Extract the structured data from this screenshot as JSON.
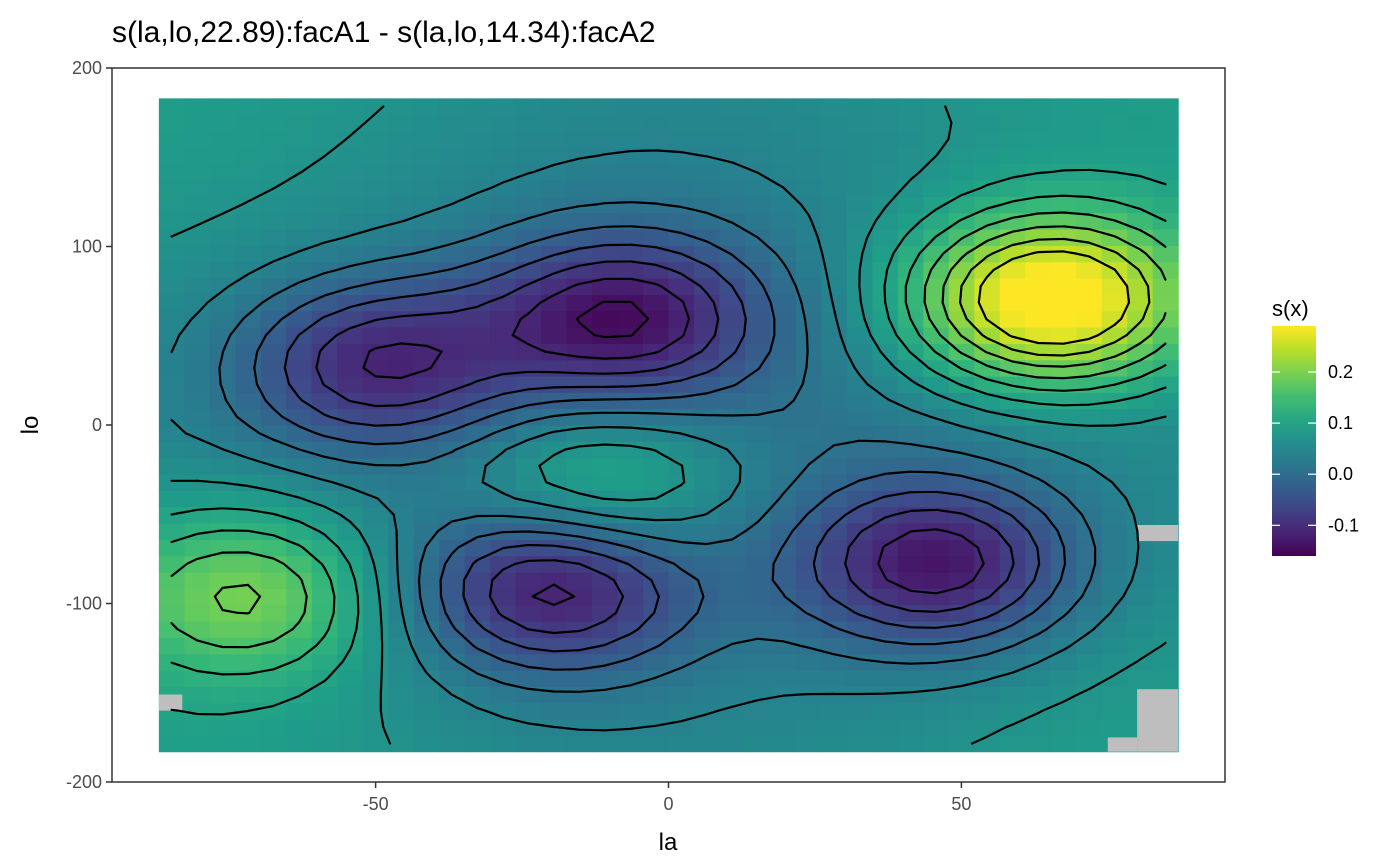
{
  "chart_data": {
    "type": "heatmap",
    "title": "s(la,lo,22.89):facA1 - s(la,lo,14.34):facA2",
    "xlabel": "la",
    "ylabel": "lo",
    "xlim": [
      -95,
      95
    ],
    "ylim": [
      -200,
      200
    ],
    "xticks": [
      -50,
      0,
      50
    ],
    "yticks": [
      -200,
      -100,
      0,
      100,
      200
    ],
    "grid": false,
    "colormap": "viridis",
    "na_color": "#bebebe",
    "raster_extent": {
      "x": [
        -87,
        87
      ],
      "y": [
        -183,
        183
      ]
    },
    "grid_resolution": {
      "nx": 40,
      "ny": 40
    },
    "surface_features": [
      {
        "kind": "peak",
        "x": 65,
        "y": 70,
        "value": 0.29
      },
      {
        "kind": "peak",
        "x": -72,
        "y": -95,
        "value": 0.16
      },
      {
        "kind": "peak",
        "x": -12,
        "y": -32,
        "value": 0.14
      },
      {
        "kind": "trough",
        "x": 46,
        "y": -78,
        "value": -0.15
      },
      {
        "kind": "trough",
        "x": -20,
        "y": -90,
        "value": -0.14
      },
      {
        "kind": "trough",
        "x": -8,
        "y": 60,
        "value": -0.14
      },
      {
        "kind": "trough",
        "x": -50,
        "y": 35,
        "value": -0.12
      }
    ],
    "legend": {
      "title": "s(x)",
      "position": "right",
      "breaks": [
        0.2,
        0.1,
        0.0,
        -0.1
      ],
      "labels": [
        "0.2",
        "0.1",
        "0.0",
        "-0.1"
      ],
      "range": [
        -0.16,
        0.29
      ]
    }
  }
}
